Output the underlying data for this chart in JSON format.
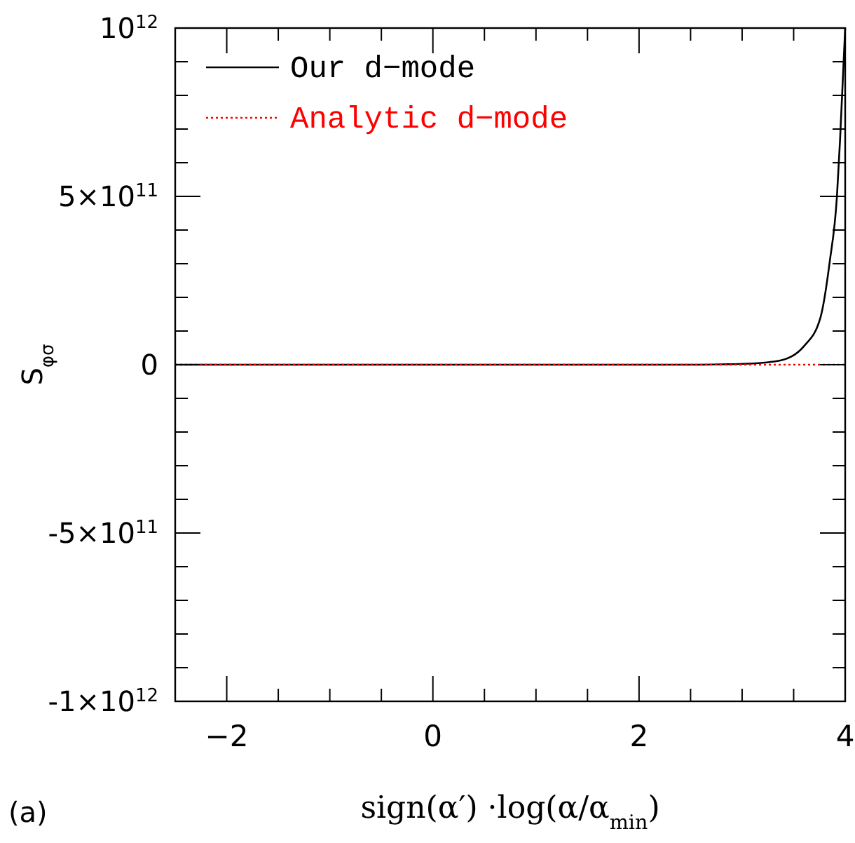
{
  "chart_data": {
    "type": "line",
    "xlabel": "sign(α′) ·log(α/α$_{min}$)",
    "ylabel": "S$_{φσ}$",
    "annotations": [
      "(a)"
    ],
    "xlim": [
      -2.5,
      4
    ],
    "ylim": [
      -1000000000000.0,
      1000000000000.0
    ],
    "xticks": [
      {
        "value": -2.5,
        "label": null
      },
      -2,
      {
        "value": -1.5,
        "label": null
      },
      {
        "value": -1,
        "label": null
      },
      {
        "value": -0.5,
        "label": null
      },
      0,
      {
        "value": 0.5,
        "label": null
      },
      {
        "value": 1,
        "label": null
      },
      {
        "value": 1.5,
        "label": null
      },
      2,
      {
        "value": 2.5,
        "label": null
      },
      {
        "value": 3,
        "label": null
      },
      {
        "value": 3.5,
        "label": null
      },
      4
    ],
    "yticks": [
      {
        "value": -1000000000000.0,
        "label": "-1×10$^{12}$"
      },
      {
        "value": -900000000000.0,
        "label": null
      },
      {
        "value": -800000000000.0,
        "label": null
      },
      {
        "value": -700000000000.0,
        "label": null
      },
      {
        "value": -600000000000.0,
        "label": null
      },
      {
        "value": -500000000000.0,
        "label": "-5×10$^{11}$"
      },
      {
        "value": -400000000000.0,
        "label": null
      },
      {
        "value": -300000000000.0,
        "label": null
      },
      {
        "value": -200000000000.0,
        "label": null
      },
      {
        "value": -100000000000.0,
        "label": null
      },
      0,
      {
        "value": 100000000000.0,
        "label": null
      },
      {
        "value": 200000000000.0,
        "label": null
      },
      {
        "value": 300000000000.0,
        "label": null
      },
      {
        "value": 400000000000.0,
        "label": null
      },
      {
        "value": 500000000000.0,
        "label": "5×10$^{11}$"
      },
      {
        "value": 600000000000.0,
        "label": null
      },
      {
        "value": 700000000000.0,
        "label": null
      },
      {
        "value": 800000000000.0,
        "label": null
      },
      {
        "value": 900000000000.0,
        "label": null
      },
      {
        "value": 1000000000000.0,
        "label": "10$^{12}$"
      }
    ],
    "legend": "top left",
    "grid": false,
    "series": [
      {
        "name": "Our d−mode",
        "color": "#000000",
        "line_style": "solid",
        "x": [
          -2.5,
          0,
          2.5,
          2.8,
          3.06,
          3.37,
          3.6,
          3.76,
          3.85,
          3.92,
          3.95,
          4
        ],
        "values": [
          0,
          0,
          0,
          1000000000.0,
          3000000000.0,
          12500000000.0,
          55000000000.0,
          140000000000.0,
          306000000000.0,
          500000000000.0,
          667000000000.0,
          1000000000000.0
        ]
      },
      {
        "name": "Analytic d−mode",
        "color": "#ff0000",
        "line_style": "dotted",
        "x": [
          -2.5,
          4
        ],
        "values": [
          0,
          0
        ]
      }
    ]
  }
}
